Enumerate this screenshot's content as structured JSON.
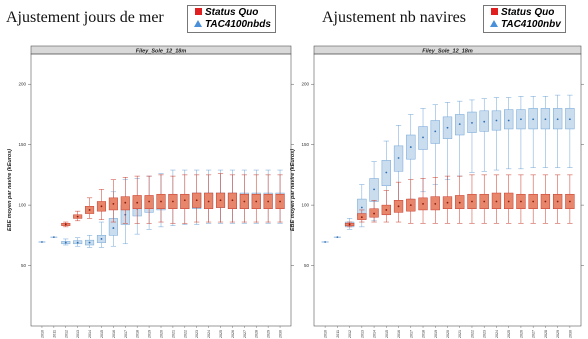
{
  "headings": {
    "left": "Ajustement jours de mer",
    "right": "Ajustement nb navires"
  },
  "legends": {
    "left": [
      {
        "label": "Status Quo",
        "color": "#e02020",
        "shape": "square"
      },
      {
        "label": "TAC4100nbds",
        "color": "#4a90d9",
        "shape": "triangle"
      }
    ],
    "right": [
      {
        "label": "Status Quo",
        "color": "#e02020",
        "shape": "square"
      },
      {
        "label": "TAC4100nbv",
        "color": "#4a90d9",
        "shape": "triangle"
      }
    ]
  },
  "chart_data": [
    {
      "type": "boxplot",
      "panel": "left",
      "title": "Filey_Sole_12_18m",
      "ylabel": "EBE moyen par navire (kEuros)",
      "xlabel": "",
      "ylim": [
        0,
        225
      ],
      "yticks": [
        50,
        100,
        150,
        200
      ],
      "categories": [
        "2010",
        "2011",
        "2012",
        "2013",
        "2014",
        "2015",
        "2016",
        "2017",
        "2018",
        "2019",
        "2020",
        "2021",
        "2022",
        "2023",
        "2024",
        "2025",
        "2026",
        "2027",
        "2028",
        "2029",
        "2030"
      ],
      "series": [
        {
          "name": "Status Quo",
          "color": "#e8866b",
          "stroke": "#c8392a",
          "boxes": [
            null,
            null,
            {
              "min": 82,
              "q1": 83,
              "med": 84,
              "q3": 85,
              "max": 86
            },
            {
              "min": 87,
              "q1": 89,
              "med": 90.5,
              "q3": 92,
              "max": 95
            },
            {
              "min": 89,
              "q1": 93,
              "med": 96,
              "q3": 99,
              "max": 106
            },
            {
              "min": 88,
              "q1": 95,
              "med": 99,
              "q3": 103,
              "max": 113
            },
            {
              "min": 86,
              "q1": 96,
              "med": 101,
              "q3": 106,
              "max": 121
            },
            {
              "min": 85,
              "q1": 96,
              "med": 102,
              "q3": 107,
              "max": 123
            },
            {
              "min": 85,
              "q1": 97,
              "med": 102,
              "q3": 108,
              "max": 124
            },
            {
              "min": 85,
              "q1": 97,
              "med": 103,
              "q3": 108,
              "max": 124
            },
            {
              "min": 86,
              "q1": 97,
              "med": 103,
              "q3": 109,
              "max": 125
            },
            {
              "min": 85,
              "q1": 97,
              "med": 103,
              "q3": 109,
              "max": 124
            },
            {
              "min": 85,
              "q1": 97,
              "med": 104,
              "q3": 109,
              "max": 125
            },
            {
              "min": 86,
              "q1": 98,
              "med": 104,
              "q3": 110,
              "max": 125
            },
            {
              "min": 86,
              "q1": 97,
              "med": 103,
              "q3": 110,
              "max": 125
            },
            {
              "min": 86,
              "q1": 98,
              "med": 104,
              "q3": 110,
              "max": 126
            },
            {
              "min": 86,
              "q1": 97,
              "med": 104,
              "q3": 110,
              "max": 125
            },
            {
              "min": 86,
              "q1": 97,
              "med": 103,
              "q3": 109,
              "max": 125
            },
            {
              "min": 86,
              "q1": 97,
              "med": 103,
              "q3": 109,
              "max": 125
            },
            {
              "min": 86,
              "q1": 97,
              "med": 103,
              "q3": 109,
              "max": 125
            },
            {
              "min": 86,
              "q1": 97,
              "med": 103,
              "q3": 109,
              "max": 125
            }
          ]
        },
        {
          "name": "TAC4100nbds",
          "color": "#c9ddef",
          "stroke": "#6fa3d6",
          "boxes": [
            {
              "min": 69.5,
              "q1": 69.5,
              "med": 69.5,
              "q3": 69.5,
              "max": 69.5
            },
            {
              "min": 73.5,
              "q1": 73.5,
              "med": 73.5,
              "q3": 73.5,
              "max": 73.5
            },
            {
              "min": 67,
              "q1": 68,
              "med": 69,
              "q3": 70,
              "max": 72
            },
            {
              "min": 66,
              "q1": 68,
              "med": 69,
              "q3": 70.5,
              "max": 73
            },
            {
              "min": 65,
              "q1": 67,
              "med": 69,
              "q3": 71,
              "max": 75
            },
            {
              "min": 65,
              "q1": 69,
              "med": 72,
              "q3": 75,
              "max": 86
            },
            {
              "min": 66,
              "q1": 75,
              "med": 81,
              "q3": 89,
              "max": 111
            },
            {
              "min": 68,
              "q1": 84,
              "med": 92,
              "q3": 100,
              "max": 121
            },
            {
              "min": 76,
              "q1": 91,
              "med": 97,
              "q3": 104,
              "max": 122
            },
            {
              "min": 80,
              "q1": 94,
              "med": 100,
              "q3": 106,
              "max": 124
            },
            {
              "min": 82,
              "q1": 96,
              "med": 102,
              "q3": 108,
              "max": 126
            },
            {
              "min": 83,
              "q1": 97,
              "med": 103,
              "q3": 109,
              "max": 129
            },
            {
              "min": 84,
              "q1": 97,
              "med": 103,
              "q3": 109,
              "max": 129
            },
            {
              "min": 84,
              "q1": 97,
              "med": 104,
              "q3": 110,
              "max": 129
            },
            {
              "min": 85,
              "q1": 98,
              "med": 104,
              "q3": 110,
              "max": 129
            },
            {
              "min": 85,
              "q1": 98,
              "med": 104,
              "q3": 110,
              "max": 129
            },
            {
              "min": 85,
              "q1": 97,
              "med": 104,
              "q3": 110,
              "max": 129
            },
            {
              "min": 85,
              "q1": 97,
              "med": 104,
              "q3": 110,
              "max": 129
            },
            {
              "min": 85,
              "q1": 97,
              "med": 103,
              "q3": 110,
              "max": 129
            },
            {
              "min": 85,
              "q1": 97,
              "med": 103,
              "q3": 110,
              "max": 129
            },
            {
              "min": 85,
              "q1": 97,
              "med": 103,
              "q3": 110,
              "max": 129
            }
          ]
        }
      ]
    },
    {
      "type": "boxplot",
      "panel": "right",
      "title": "Filey_Sole_12_18m",
      "ylabel": "EBE moyen par navire (kEuros)",
      "xlabel": "",
      "ylim": [
        0,
        225
      ],
      "yticks": [
        50,
        100,
        150,
        200
      ],
      "categories": [
        "2010",
        "2011",
        "2012",
        "2013",
        "2014",
        "2015",
        "2016",
        "2017",
        "2018",
        "2019",
        "2020",
        "2021",
        "2022",
        "2023",
        "2024",
        "2025",
        "2026",
        "2027",
        "2028",
        "2029",
        "2030"
      ],
      "series": [
        {
          "name": "Status Quo",
          "color": "#e8866b",
          "stroke": "#c8392a",
          "boxes": [
            null,
            null,
            {
              "min": 82,
              "q1": 83,
              "med": 84,
              "q3": 85,
              "max": 86
            },
            {
              "min": 86,
              "q1": 88,
              "med": 90,
              "q3": 93,
              "max": 96
            },
            {
              "min": 86,
              "q1": 90,
              "med": 93,
              "q3": 97,
              "max": 104
            },
            {
              "min": 86,
              "q1": 92,
              "med": 96,
              "q3": 100,
              "max": 112
            },
            {
              "min": 86,
              "q1": 94,
              "med": 99,
              "q3": 104,
              "max": 119
            },
            {
              "min": 85,
              "q1": 95,
              "med": 100,
              "q3": 105,
              "max": 121
            },
            {
              "min": 85,
              "q1": 96,
              "med": 101,
              "q3": 106,
              "max": 122
            },
            {
              "min": 85,
              "q1": 96,
              "med": 101,
              "q3": 107,
              "max": 123
            },
            {
              "min": 85,
              "q1": 97,
              "med": 102,
              "q3": 107,
              "max": 124
            },
            {
              "min": 85,
              "q1": 97,
              "med": 102,
              "q3": 108,
              "max": 124
            },
            {
              "min": 85,
              "q1": 97,
              "med": 103,
              "q3": 109,
              "max": 125
            },
            {
              "min": 85,
              "q1": 97,
              "med": 103,
              "q3": 109,
              "max": 125
            },
            {
              "min": 85,
              "q1": 97,
              "med": 103,
              "q3": 110,
              "max": 125
            },
            {
              "min": 85,
              "q1": 97,
              "med": 103,
              "q3": 110,
              "max": 125
            },
            {
              "min": 85,
              "q1": 97,
              "med": 103,
              "q3": 109,
              "max": 125
            },
            {
              "min": 85,
              "q1": 97,
              "med": 103,
              "q3": 109,
              "max": 125
            },
            {
              "min": 85,
              "q1": 97,
              "med": 103,
              "q3": 109,
              "max": 125
            },
            {
              "min": 85,
              "q1": 97,
              "med": 103,
              "q3": 109,
              "max": 125
            },
            {
              "min": 85,
              "q1": 97,
              "med": 103,
              "q3": 109,
              "max": 125
            }
          ]
        },
        {
          "name": "TAC4100nbv",
          "color": "#c9ddef",
          "stroke": "#6fa3d6",
          "boxes": [
            {
              "min": 69.5,
              "q1": 69.5,
              "med": 69.5,
              "q3": 69.5,
              "max": 69.5
            },
            {
              "min": 73.5,
              "q1": 73.5,
              "med": 73.5,
              "q3": 73.5,
              "max": 73.5
            },
            {
              "min": 80,
              "q1": 82,
              "med": 84,
              "q3": 86,
              "max": 89
            },
            {
              "min": 82,
              "q1": 91,
              "med": 98,
              "q3": 105,
              "max": 117
            },
            {
              "min": 87,
              "q1": 103,
              "med": 113,
              "q3": 122,
              "max": 136
            },
            {
              "min": 92,
              "q1": 116,
              "med": 127,
              "q3": 137,
              "max": 153
            },
            {
              "min": 98,
              "q1": 128,
              "med": 139,
              "q3": 149,
              "max": 166
            },
            {
              "min": 105,
              "q1": 138,
              "med": 148,
              "q3": 158,
              "max": 175
            },
            {
              "min": 111,
              "q1": 146,
              "med": 156,
              "q3": 165,
              "max": 180
            },
            {
              "min": 117,
              "q1": 151,
              "med": 161,
              "q3": 170,
              "max": 183
            },
            {
              "min": 121,
              "q1": 155,
              "med": 164,
              "q3": 173,
              "max": 185
            },
            {
              "min": 124,
              "q1": 158,
              "med": 167,
              "q3": 175,
              "max": 186
            },
            {
              "min": 127,
              "q1": 160,
              "med": 168,
              "q3": 177,
              "max": 187
            },
            {
              "min": 128,
              "q1": 161,
              "med": 169,
              "q3": 178,
              "max": 188
            },
            {
              "min": 129,
              "q1": 162,
              "med": 170,
              "q3": 178,
              "max": 189
            },
            {
              "min": 130,
              "q1": 163,
              "med": 170,
              "q3": 179,
              "max": 189
            },
            {
              "min": 130,
              "q1": 163,
              "med": 171,
              "q3": 179,
              "max": 190
            },
            {
              "min": 131,
              "q1": 163,
              "med": 171,
              "q3": 180,
              "max": 190
            },
            {
              "min": 131,
              "q1": 163,
              "med": 171,
              "q3": 180,
              "max": 190
            },
            {
              "min": 131,
              "q1": 163,
              "med": 171,
              "q3": 180,
              "max": 191
            },
            {
              "min": 131,
              "q1": 163,
              "med": 171,
              "q3": 180,
              "max": 191
            }
          ]
        }
      ]
    }
  ]
}
